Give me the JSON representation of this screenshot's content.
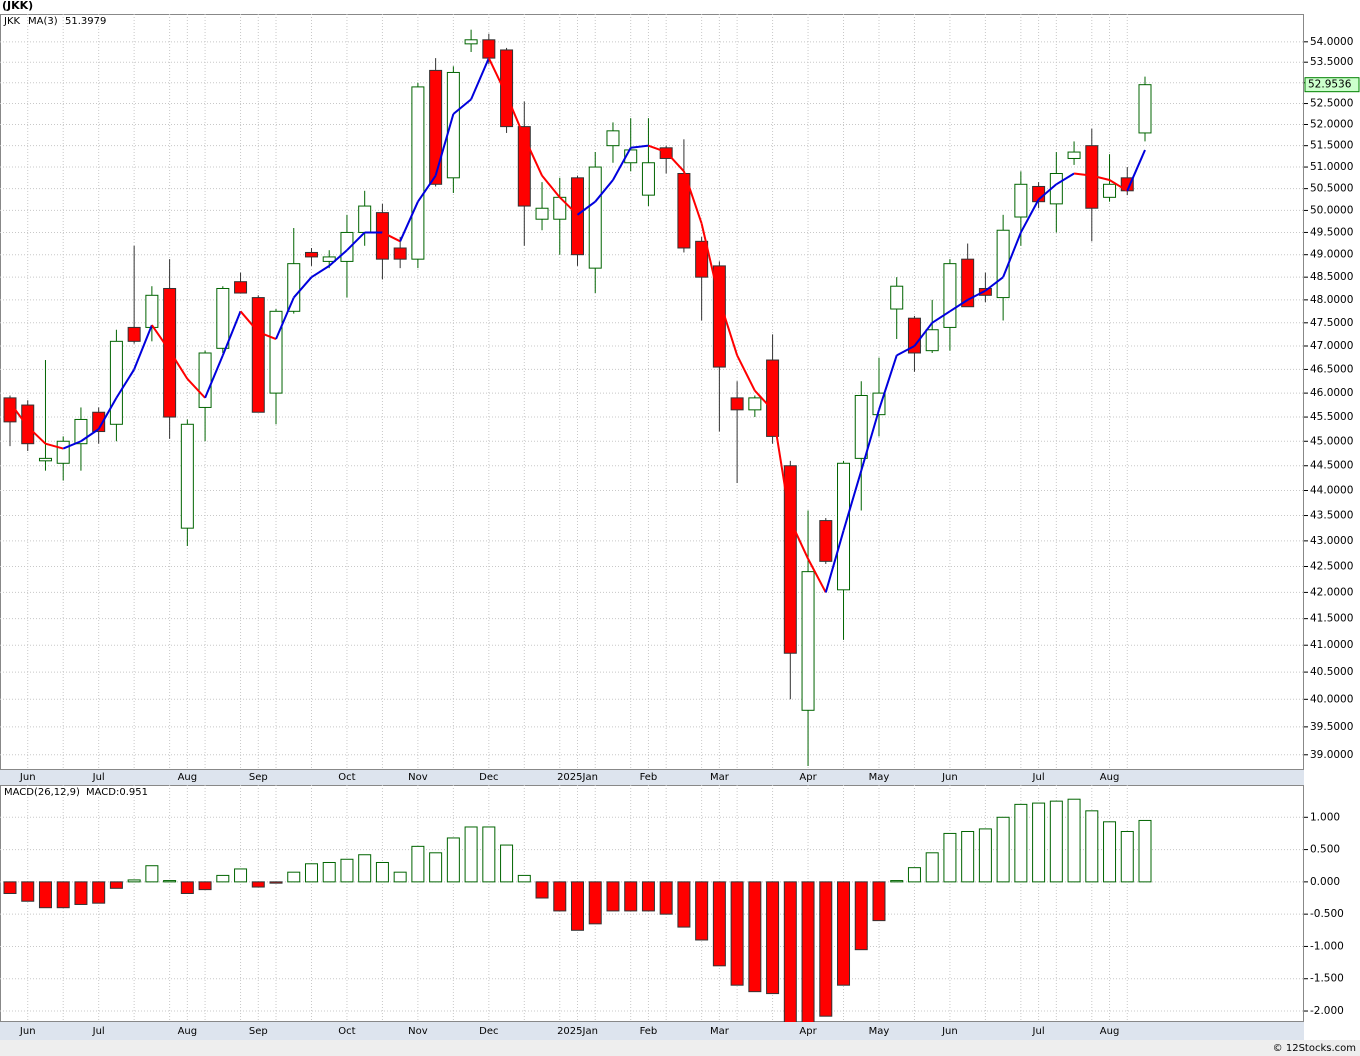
{
  "chart_data": [
    {
      "type": "candlestick",
      "title": "(JKK)",
      "symbol": "JKK",
      "symbol_color": "#008000",
      "categories": [
        null,
        "Jun",
        null,
        null,
        null,
        "Jul",
        null,
        null,
        null,
        null,
        "Aug",
        null,
        null,
        null,
        "Sep",
        null,
        null,
        null,
        null,
        "Oct",
        null,
        null,
        null,
        "Nov",
        null,
        null,
        null,
        "Dec",
        null,
        null,
        null,
        null,
        "2025Jan",
        null,
        null,
        null,
        "Feb",
        null,
        null,
        null,
        "Mar",
        null,
        null,
        null,
        null,
        "Apr",
        null,
        null,
        null,
        "May",
        null,
        null,
        null,
        "Jun",
        null,
        null,
        null,
        null,
        "Jul",
        null,
        null,
        null,
        "Aug",
        null,
        null
      ],
      "open": [
        45.9,
        45.75,
        44.6,
        44.55,
        44.95,
        45.6,
        45.35,
        47.4,
        47.4,
        48.25,
        43.25,
        45.7,
        46.95,
        48.4,
        48.05,
        46.0,
        47.75,
        49.05,
        48.85,
        48.85,
        49.5,
        49.95,
        49.15,
        48.9,
        53.3,
        50.75,
        53.95,
        54.05,
        53.8,
        51.95,
        49.8,
        49.8,
        50.75,
        48.7,
        51.5,
        51.1,
        50.35,
        51.45,
        50.85,
        49.3,
        48.75,
        45.9,
        45.65,
        46.7,
        44.5,
        39.8,
        43.4,
        42.05,
        44.65,
        45.55,
        47.8,
        47.6,
        46.9,
        47.4,
        48.9,
        48.25,
        48.05,
        49.85,
        50.55,
        50.15,
        51.2,
        51.5,
        50.3,
        50.75,
        51.8
      ],
      "high": [
        45.95,
        45.85,
        46.7,
        45.1,
        45.7,
        45.7,
        47.35,
        49.2,
        48.3,
        48.9,
        45.45,
        46.9,
        48.3,
        48.6,
        48.1,
        47.8,
        49.6,
        49.15,
        49.1,
        49.9,
        50.45,
        50.15,
        49.4,
        53.0,
        53.6,
        53.4,
        54.3,
        54.2,
        53.85,
        52.55,
        50.65,
        50.75,
        50.8,
        51.35,
        52.05,
        52.15,
        52.15,
        51.5,
        51.65,
        49.4,
        48.85,
        46.25,
        45.95,
        47.25,
        44.6,
        43.6,
        43.45,
        44.6,
        46.25,
        46.75,
        48.5,
        47.65,
        48.0,
        48.9,
        49.25,
        48.6,
        49.9,
        50.9,
        50.65,
        51.35,
        51.6,
        51.9,
        51.3,
        51.0,
        53.15
      ],
      "low": [
        44.9,
        44.8,
        44.4,
        44.2,
        44.4,
        44.95,
        45.0,
        47.05,
        47.1,
        45.05,
        42.9,
        45.0,
        46.85,
        48.15,
        45.6,
        45.35,
        47.7,
        48.75,
        48.7,
        48.05,
        49.2,
        48.45,
        48.7,
        48.7,
        50.55,
        50.4,
        53.75,
        53.45,
        51.8,
        49.2,
        49.55,
        49.0,
        48.75,
        48.15,
        51.1,
        50.9,
        50.1,
        50.85,
        49.05,
        47.55,
        45.2,
        44.15,
        45.5,
        44.95,
        40.0,
        38.8,
        42.55,
        41.1,
        43.6,
        45.1,
        47.15,
        46.45,
        46.85,
        46.9,
        47.85,
        47.95,
        47.55,
        49.2,
        50.05,
        49.5,
        51.05,
        49.3,
        50.2,
        50.35,
        51.6
      ],
      "close": [
        45.4,
        44.95,
        44.65,
        45.0,
        45.45,
        45.2,
        47.1,
        47.1,
        48.1,
        45.5,
        45.35,
        46.85,
        48.25,
        48.15,
        45.6,
        47.75,
        48.8,
        48.95,
        48.95,
        49.5,
        50.1,
        48.9,
        48.9,
        52.9,
        50.6,
        53.25,
        54.05,
        53.6,
        51.95,
        50.1,
        50.05,
        50.3,
        49.0,
        51.0,
        51.85,
        51.4,
        51.1,
        51.2,
        49.15,
        48.5,
        46.55,
        45.65,
        45.9,
        45.1,
        40.85,
        42.4,
        42.6,
        44.55,
        45.95,
        46.0,
        48.3,
        46.85,
        47.35,
        48.8,
        47.85,
        48.1,
        49.55,
        50.6,
        50.2,
        50.85,
        51.35,
        50.05,
        50.6,
        50.45,
        52.9536
      ],
      "up_color": "#006400",
      "down_color": "#ff0000",
      "ma": {
        "name": "MA(3)",
        "up_color": "#0000dd",
        "down_color": "#ff0000",
        "values": [
          45.8,
          45.3,
          44.95,
          44.85,
          45.0,
          45.25,
          45.9,
          46.5,
          47.45,
          46.9,
          46.3,
          45.9,
          46.8,
          47.75,
          47.3,
          47.15,
          48.05,
          48.5,
          48.75,
          49.1,
          49.5,
          49.5,
          49.3,
          50.2,
          50.8,
          52.25,
          52.6,
          53.6,
          52.7,
          51.7,
          50.8,
          50.3,
          49.9,
          50.2,
          50.7,
          51.45,
          51.5,
          51.35,
          50.9,
          49.7,
          48.0,
          46.8,
          46.05,
          45.65,
          43.4,
          42.65,
          42.0,
          43.2,
          44.4,
          45.65,
          46.8,
          47.0,
          47.5,
          47.75,
          48.0,
          48.2,
          48.5,
          49.5,
          50.25,
          50.6,
          50.85,
          50.8,
          50.7,
          50.45,
          51.3979
        ]
      },
      "ylim": [
        38.73,
        54.69
      ],
      "log_scale": true,
      "grid": true,
      "yticks": [
        {
          "value": 39,
          "label": "39.0000"
        },
        {
          "value": 39.5,
          "label": "39.5000"
        },
        {
          "value": 40,
          "label": "40.0000"
        },
        {
          "value": 40.5,
          "label": "40.5000"
        },
        {
          "value": 41,
          "label": "41.0000"
        },
        {
          "value": 41.5,
          "label": "41.5000"
        },
        {
          "value": 42,
          "label": "42.0000"
        },
        {
          "value": 42.5,
          "label": "42.5000"
        },
        {
          "value": 43,
          "label": "43.0000"
        },
        {
          "value": 43.5,
          "label": "43.5000"
        },
        {
          "value": 44,
          "label": "44.0000"
        },
        {
          "value": 44.5,
          "label": "44.5000"
        },
        {
          "value": 45,
          "label": "45.0000"
        },
        {
          "value": 45.5,
          "label": "45.5000"
        },
        {
          "value": 46,
          "label": "46.0000"
        },
        {
          "value": 46.5,
          "label": "46.5000"
        },
        {
          "value": 47,
          "label": "47.0000"
        },
        {
          "value": 47.5,
          "label": "47.5000"
        },
        {
          "value": 48,
          "label": "48.0000"
        },
        {
          "value": 48.5,
          "label": "48.5000"
        },
        {
          "value": 49,
          "label": "49.0000"
        },
        {
          "value": 49.5,
          "label": "49.5000"
        },
        {
          "value": 50,
          "label": "50.0000"
        },
        {
          "value": 50.5,
          "label": "50.5000"
        },
        {
          "value": 51,
          "label": "51.0000"
        },
        {
          "value": 51.5,
          "label": "51.5000"
        },
        {
          "value": 52,
          "label": "52.0000"
        },
        {
          "value": 52.5,
          "label": "52.5000"
        },
        {
          "value": 53,
          "label": "53.0000"
        },
        {
          "value": 53.5,
          "label": "53.5000"
        },
        {
          "value": 54,
          "label": "54.0000"
        }
      ]
    },
    {
      "type": "bar",
      "title": "MACD(26,12,9)",
      "current_label": "MACD:0.951",
      "up_color": "#006400",
      "down_color": "#ff0000",
      "values": [
        -0.18,
        -0.3,
        -0.4,
        -0.4,
        -0.35,
        -0.33,
        -0.1,
        0.03,
        0.25,
        0.02,
        -0.18,
        -0.12,
        0.1,
        0.2,
        -0.08,
        -0.02,
        0.15,
        0.28,
        0.3,
        0.35,
        0.42,
        0.3,
        0.15,
        0.55,
        0.45,
        0.68,
        0.85,
        0.85,
        0.57,
        0.1,
        -0.25,
        -0.45,
        -0.75,
        -0.65,
        -0.45,
        -0.45,
        -0.45,
        -0.5,
        -0.7,
        -0.9,
        -1.3,
        -1.6,
        -1.7,
        -1.73,
        -2.2,
        -2.2,
        -2.08,
        -1.6,
        -1.05,
        -0.6,
        0.02,
        0.22,
        0.45,
        0.75,
        0.78,
        0.82,
        1.0,
        1.2,
        1.22,
        1.25,
        1.28,
        1.1,
        0.93,
        0.78,
        0.951
      ],
      "ylim": [
        -2.17,
        1.5
      ],
      "grid": true,
      "yticks": [
        {
          "value": -2,
          "label": "-2.000"
        },
        {
          "value": -1.5,
          "label": "-1.500"
        },
        {
          "value": -1,
          "label": "-1.000"
        },
        {
          "value": -0.5,
          "label": "-0.500"
        },
        {
          "value": 0,
          "label": "0.000"
        },
        {
          "value": 0.5,
          "label": "0.500"
        },
        {
          "value": 1,
          "label": "1.000"
        }
      ]
    }
  ],
  "footer": "© 12Stocks.com"
}
